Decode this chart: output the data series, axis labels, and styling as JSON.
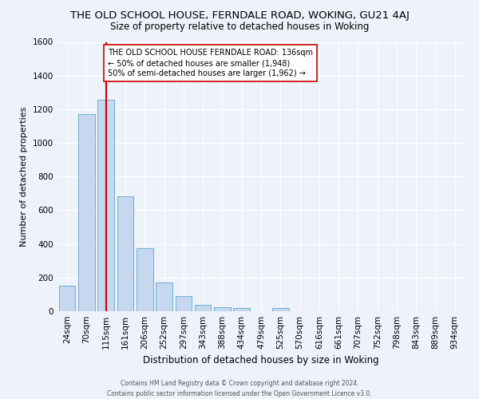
{
  "title": "THE OLD SCHOOL HOUSE, FERNDALE ROAD, WOKING, GU21 4AJ",
  "subtitle": "Size of property relative to detached houses in Woking",
  "xlabel": "Distribution of detached houses by size in Woking",
  "ylabel": "Number of detached properties",
  "footer_line1": "Contains HM Land Registry data © Crown copyright and database right 2024.",
  "footer_line2": "Contains public sector information licensed under the Open Government Licence v3.0.",
  "bar_labels": [
    "24sqm",
    "70sqm",
    "115sqm",
    "161sqm",
    "206sqm",
    "252sqm",
    "297sqm",
    "343sqm",
    "388sqm",
    "434sqm",
    "479sqm",
    "525sqm",
    "570sqm",
    "616sqm",
    "661sqm",
    "707sqm",
    "752sqm",
    "798sqm",
    "843sqm",
    "889sqm",
    "934sqm"
  ],
  "bar_heights": [
    150,
    1170,
    1255,
    685,
    375,
    170,
    90,
    38,
    22,
    18,
    0,
    18,
    0,
    0,
    0,
    0,
    0,
    0,
    0,
    0,
    0
  ],
  "bar_color": "#c5d8ef",
  "bar_edge_color": "#6aaed6",
  "red_line_x": 2.0,
  "red_line_color": "#cc0000",
  "annotation_text": "THE OLD SCHOOL HOUSE FERNDALE ROAD: 136sqm\n← 50% of detached houses are smaller (1,948)\n50% of semi-detached houses are larger (1,962) →",
  "annotation_box_color": "#ffffff",
  "annotation_box_edge": "#cc0000",
  "ylim": [
    0,
    1600
  ],
  "yticks": [
    0,
    200,
    400,
    600,
    800,
    1000,
    1200,
    1400,
    1600
  ],
  "bg_color": "#eef2fb",
  "plot_bg_color": "#eef2fb",
  "grid_color": "#ffffff",
  "title_fontsize": 9.5,
  "subtitle_fontsize": 8.5,
  "xlabel_fontsize": 8.5,
  "ylabel_fontsize": 8,
  "tick_fontsize": 7.5,
  "annotation_fontsize": 7,
  "footer_fontsize": 5.5
}
